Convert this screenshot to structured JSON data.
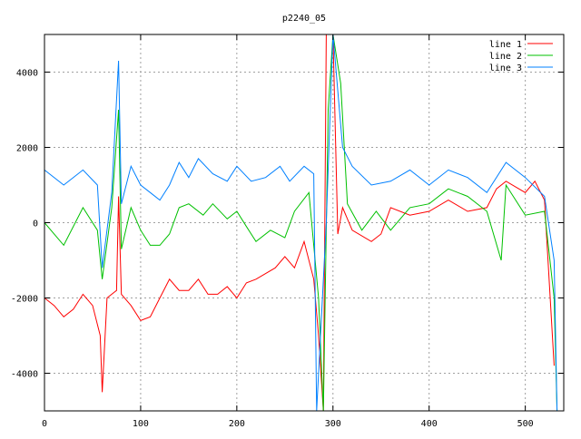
{
  "chart_data": {
    "type": "line",
    "title": "p2240_05",
    "xlabel": "",
    "ylabel": "",
    "xlim": [
      0,
      540
    ],
    "ylim": [
      -5000,
      5000
    ],
    "xticks": [
      0,
      100,
      200,
      300,
      400,
      500
    ],
    "yticks": [
      -4000,
      -2000,
      0,
      2000,
      4000
    ],
    "grid": true,
    "legend_position": "top-right",
    "series": [
      {
        "name": "line 1",
        "color": "#ff0000",
        "x": [
          0,
          10,
          20,
          30,
          40,
          50,
          58,
          60,
          65,
          75,
          77,
          80,
          90,
          100,
          110,
          120,
          130,
          140,
          150,
          160,
          170,
          180,
          190,
          200,
          210,
          220,
          240,
          250,
          260,
          270,
          280,
          285,
          290,
          293,
          300,
          305,
          310,
          320,
          340,
          350,
          360,
          380,
          400,
          420,
          440,
          460,
          470,
          480,
          500,
          510,
          520,
          530
        ],
        "y": [
          -2000,
          -2200,
          -2500,
          -2300,
          -1900,
          -2200,
          -3000,
          -4500,
          -2000,
          -1800,
          700,
          -1900,
          -2200,
          -2600,
          -2500,
          -2000,
          -1500,
          -1800,
          -1800,
          -1500,
          -1900,
          -1900,
          -1700,
          -2000,
          -1600,
          -1500,
          -1200,
          -900,
          -1200,
          -500,
          -1500,
          -3000,
          -5000,
          5000,
          5000,
          -300,
          400,
          -200,
          -500,
          -300,
          400,
          200,
          300,
          600,
          300,
          400,
          900,
          1100,
          800,
          1100,
          600,
          -3800
        ]
      },
      {
        "name": "line 2",
        "color": "#00c000",
        "x": [
          0,
          20,
          40,
          55,
          60,
          70,
          77,
          80,
          90,
          100,
          110,
          120,
          130,
          140,
          150,
          165,
          175,
          190,
          200,
          210,
          220,
          235,
          250,
          260,
          275,
          285,
          290,
          295,
          300,
          308,
          315,
          330,
          345,
          360,
          380,
          400,
          420,
          440,
          460,
          475,
          480,
          500,
          520,
          530,
          533
        ],
        "y": [
          0,
          -600,
          400,
          -200,
          -1500,
          400,
          3000,
          -700,
          400,
          -200,
          -600,
          -600,
          -300,
          400,
          500,
          200,
          500,
          100,
          300,
          -100,
          -500,
          -200,
          -400,
          300,
          800,
          -2000,
          -5000,
          3000,
          5000,
          3700,
          500,
          -200,
          300,
          -200,
          400,
          500,
          900,
          700,
          300,
          -1000,
          1000,
          200,
          300,
          -2000,
          -5000
        ]
      },
      {
        "name": "line 3",
        "color": "#0080ff",
        "x": [
          0,
          20,
          40,
          55,
          60,
          70,
          77,
          80,
          90,
          100,
          110,
          120,
          130,
          140,
          150,
          160,
          175,
          190,
          200,
          215,
          230,
          245,
          255,
          270,
          280,
          283,
          288,
          293,
          300,
          310,
          320,
          340,
          360,
          380,
          400,
          420,
          440,
          460,
          480,
          500,
          520,
          530,
          533
        ],
        "y": [
          1400,
          1000,
          1400,
          1000,
          -1200,
          800,
          4300,
          500,
          1500,
          1000,
          800,
          600,
          1000,
          1600,
          1200,
          1700,
          1300,
          1100,
          1500,
          1100,
          1200,
          1500,
          1100,
          1500,
          1300,
          -5000,
          -2500,
          0,
          5000,
          2000,
          1500,
          1000,
          1100,
          1400,
          1000,
          1400,
          1200,
          800,
          1600,
          1200,
          700,
          -1000,
          -5000
        ]
      }
    ]
  }
}
